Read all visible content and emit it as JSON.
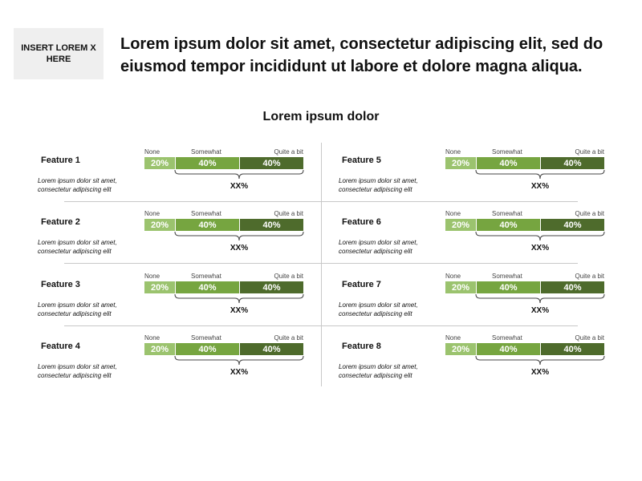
{
  "header": {
    "logo_text": "INSERT LOREM X HERE",
    "headline": "Lorem ipsum dolor sit amet, consectetur adipiscing elit, sed do eiusmod tempor incididunt ut labore et dolore magna aliqua."
  },
  "chart_data": {
    "type": "bar",
    "subtitle": "Lorem ipsum dolor",
    "segment_labels": [
      "None",
      "Somewhat",
      "Quite a bit"
    ],
    "segment_colors": [
      "#9bc36e",
      "#76a540",
      "#4e6b2c"
    ],
    "features": [
      {
        "name": "Feature 1",
        "description": "Lorem ipsum dolor sit amet, consectetur adipiscing elit",
        "values": [
          "20%",
          "40%",
          "40%"
        ],
        "summary": "XX%"
      },
      {
        "name": "Feature 2",
        "description": "Lorem ipsum dolor sit amet, consectetur adipiscing elit",
        "values": [
          "20%",
          "40%",
          "40%"
        ],
        "summary": "XX%"
      },
      {
        "name": "Feature 3",
        "description": "Lorem ipsum dolor sit amet, consectetur adipiscing elit",
        "values": [
          "20%",
          "40%",
          "40%"
        ],
        "summary": "XX%"
      },
      {
        "name": "Feature 4",
        "description": "Lorem ipsum dolor sit amet, consectetur adipiscing elit",
        "values": [
          "20%",
          "40%",
          "40%"
        ],
        "summary": "XX%"
      },
      {
        "name": "Feature 5",
        "description": "Lorem ipsum dolor sit amet, consectetur adipiscing elit",
        "values": [
          "20%",
          "40%",
          "40%"
        ],
        "summary": "XX%"
      },
      {
        "name": "Feature 6",
        "description": "Lorem ipsum dolor sit amet, consectetur adipiscing elit",
        "values": [
          "20%",
          "40%",
          "40%"
        ],
        "summary": "XX%"
      },
      {
        "name": "Feature 7",
        "description": "Lorem ipsum dolor sit amet, consectetur adipiscing elit",
        "values": [
          "20%",
          "40%",
          "40%"
        ],
        "summary": "XX%"
      },
      {
        "name": "Feature 8",
        "description": "Lorem ipsum dolor sit amet, consectetur adipiscing elit",
        "values": [
          "20%",
          "40%",
          "40%"
        ],
        "summary": "XX%"
      }
    ]
  }
}
